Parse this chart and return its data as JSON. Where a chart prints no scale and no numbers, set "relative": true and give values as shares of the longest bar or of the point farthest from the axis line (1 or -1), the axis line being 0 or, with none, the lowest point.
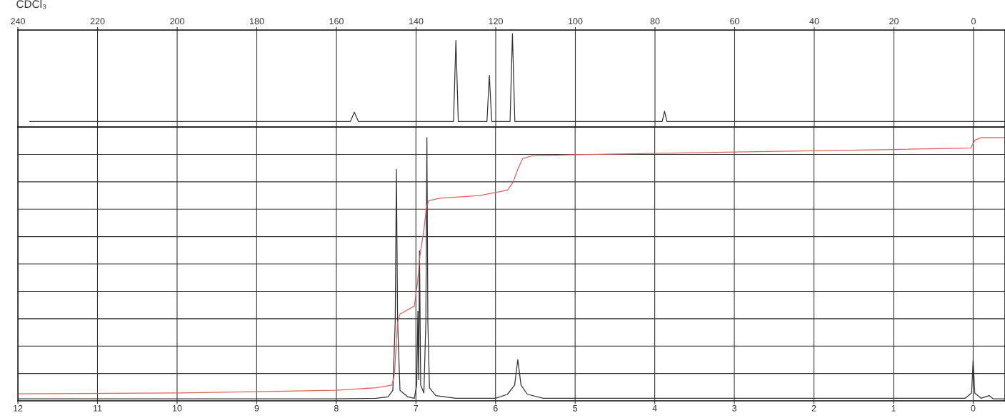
{
  "chart_data": [
    {
      "type": "line",
      "relative": true,
      "grid": "x",
      "tick_labels": "x",
      "marker": "none",
      "line_style": "solid",
      "annotations": [
        "CDCl₃"
      ],
      "xlim": [
        240,
        -7.9
      ],
      "xticks": [
        240,
        220,
        200,
        180,
        160,
        140,
        120,
        100,
        80,
        60,
        40,
        20,
        0
      ],
      "series": [
        {
          "color": "#333333",
          "x": [
            237,
            156.5,
            155.5,
            154.5,
            130.6,
            130,
            129.4,
            122.2,
            121.6,
            121,
            116.4,
            115.8,
            115.2,
            78.2,
            77.6,
            77,
            -7.9
          ],
          "values": [
            0.06,
            0.06,
            0.16,
            0.06,
            0.06,
            0.93,
            0.06,
            0.06,
            0.555,
            0.06,
            0.06,
            1.0,
            0.06,
            0.06,
            0.17,
            0.06,
            0.06
          ]
        }
      ]
    },
    {
      "type": "line",
      "relative": true,
      "grid": true,
      "tick_labels": "x",
      "marker": "none",
      "line_style": "solid",
      "xlim": [
        12,
        -0.4
      ],
      "xticks": [
        12,
        11,
        10,
        9,
        8,
        7,
        6,
        5,
        4,
        3,
        2,
        1,
        0
      ],
      "series": [
        {
          "color": "#333333",
          "x": [
            12,
            8,
            7.5,
            7.35,
            7.29,
            7.26,
            7.245,
            7.23,
            7.2,
            7.1,
            7.02,
            6.99,
            6.975,
            6.965,
            6.955,
            6.94,
            6.9,
            6.875,
            6.862,
            6.85,
            6.83,
            6.75,
            6.5,
            6.0,
            5.85,
            5.76,
            5.72,
            5.68,
            5.6,
            5.4,
            4.5,
            0.1,
            0.02,
            0,
            -0.02,
            -0.1,
            -0.2,
            -0.25,
            -0.4
          ],
          "values": [
            0.008,
            0.008,
            0.01,
            0.015,
            0.04,
            0.3,
            0.88,
            0.3,
            0.04,
            0.015,
            0.01,
            0.06,
            0.34,
            0.08,
            0.57,
            0.06,
            0.03,
            0.3,
            1.0,
            0.3,
            0.05,
            0.02,
            0.01,
            0.01,
            0.025,
            0.06,
            0.157,
            0.06,
            0.025,
            0.01,
            0.01,
            0.01,
            0.03,
            0.155,
            0.03,
            0.01,
            0.02,
            0.008,
            0.008
          ]
        },
        {
          "color": "#e06060",
          "x": [
            12,
            10,
            8,
            7.5,
            7.3,
            7.27,
            7.25,
            7.23,
            7.2,
            7.02,
            6.98,
            6.95,
            6.9,
            6.87,
            6.84,
            6.7,
            6.2,
            5.85,
            5.78,
            5.72,
            5.66,
            5.55,
            5,
            3,
            1,
            0.03,
            -0.02,
            -0.1,
            -0.4
          ],
          "values": [
            0.027,
            0.03,
            0.04,
            0.05,
            0.06,
            0.1,
            0.2,
            0.3,
            0.33,
            0.36,
            0.45,
            0.55,
            0.65,
            0.73,
            0.76,
            0.77,
            0.78,
            0.8,
            0.83,
            0.88,
            0.92,
            0.93,
            0.935,
            0.945,
            0.955,
            0.96,
            0.99,
            1.0,
            1.0
          ]
        }
      ]
    }
  ]
}
